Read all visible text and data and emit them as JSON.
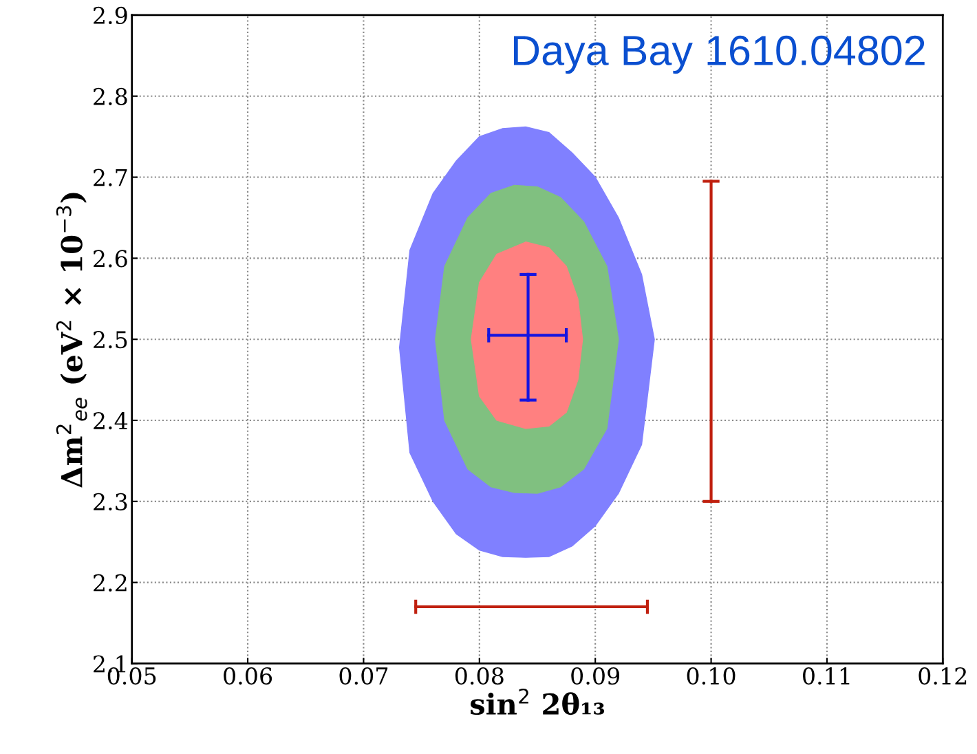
{
  "chart_data": {
    "type": "area",
    "xlabel": "sin$^{2}$ 2θ₁₃",
    "ylabel": "Δm$^{2}$$_{ee}$ (eV$^{2}$ × 10$^{−3}$)",
    "annotations": [
      "Daya Bay 1610.04802"
    ],
    "xlim": [
      0.05,
      0.12
    ],
    "xticks": [
      0.05,
      0.06,
      0.07,
      0.08,
      0.09,
      {
        "value": 0.1,
        "label": "0.10"
      },
      0.11,
      0.12
    ],
    "ylim": [
      2.1,
      2.9
    ],
    "yticks": [
      2.1,
      2.2,
      2.3,
      2.4,
      2.5,
      2.6,
      2.7,
      2.8,
      2.9
    ],
    "grid": true,
    "series": [
      {
        "color": "#8080ff",
        "x": [
          0.0731,
          0.074,
          0.076,
          0.078,
          0.08,
          0.082,
          0.084,
          0.086,
          0.088,
          0.09,
          0.092,
          0.094,
          0.0951,
          0.094,
          0.092,
          0.09,
          0.088,
          0.086,
          0.084,
          0.082,
          0.08,
          0.078,
          0.076,
          0.074
        ],
        "values": [
          2.49,
          2.61,
          2.68,
          2.72,
          2.75,
          2.76,
          2.762,
          2.755,
          2.73,
          2.7,
          2.65,
          2.58,
          2.5,
          2.37,
          2.31,
          2.27,
          2.245,
          2.232,
          2.231,
          2.232,
          2.24,
          2.26,
          2.3,
          2.36
        ]
      },
      {
        "color": "#80c080",
        "x": [
          0.0762,
          0.077,
          0.079,
          0.081,
          0.083,
          0.085,
          0.087,
          0.089,
          0.091,
          0.092,
          0.091,
          0.089,
          0.087,
          0.085,
          0.083,
          0.081,
          0.079,
          0.077
        ],
        "values": [
          2.5,
          2.59,
          2.65,
          2.68,
          2.69,
          2.688,
          2.675,
          2.645,
          2.59,
          2.5,
          2.39,
          2.34,
          2.318,
          2.31,
          2.311,
          2.318,
          2.34,
          2.4
        ]
      },
      {
        "color": "#ff8080",
        "x": [
          0.0793,
          0.08,
          0.0815,
          0.084,
          0.086,
          0.0875,
          0.0885,
          0.0889,
          0.0885,
          0.0875,
          0.086,
          0.084,
          0.0815,
          0.08
        ],
        "values": [
          2.5,
          2.57,
          2.605,
          2.62,
          2.613,
          2.59,
          2.55,
          2.5,
          2.45,
          2.41,
          2.393,
          2.39,
          2.4,
          2.43
        ]
      },
      {
        "type": "line",
        "color": "#1515e0",
        "x": [
          0.0842,
          0.0842
        ],
        "values": [
          2.425,
          2.58
        ]
      },
      {
        "type": "line",
        "color": "#1515e0",
        "x": [
          0.0808,
          0.0875
        ],
        "values": [
          2.505,
          2.505
        ]
      },
      {
        "type": "line",
        "color": "#c0200f",
        "x": [
          0.0745,
          0.0945
        ],
        "values": [
          2.17,
          2.17
        ]
      },
      {
        "type": "line",
        "color": "#c0200f",
        "x": [
          0.1,
          0.1
        ],
        "values": [
          2.3,
          2.695
        ]
      }
    ]
  }
}
